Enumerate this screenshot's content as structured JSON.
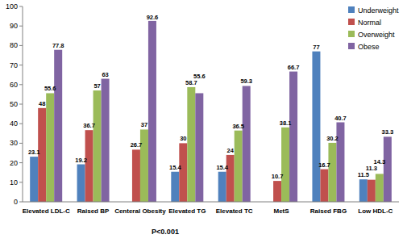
{
  "chart_data": {
    "type": "bar",
    "categories": [
      "Elevated LDL-C",
      "Raised BP",
      "Centeral Obesity",
      "Elevated TG",
      "Elevated TC",
      "MetS",
      "Raised FBG",
      "Low HDL-C"
    ],
    "series": [
      {
        "name": "Underweight",
        "color": "#4f81bd",
        "values": [
          23.1,
          19.2,
          null,
          15.4,
          15.4,
          null,
          77,
          11.5
        ]
      },
      {
        "name": "Normal",
        "color": "#c0504d",
        "values": [
          48,
          36.7,
          26.7,
          30,
          24,
          10.7,
          16.7,
          11.3
        ]
      },
      {
        "name": "Overweight",
        "color": "#9bbb59",
        "values": [
          55.6,
          57,
          37,
          58.7,
          36.5,
          38.1,
          30.2,
          14.3
        ]
      },
      {
        "name": "Obese",
        "color": "#8064a2",
        "values": [
          77.8,
          63,
          92.6,
          55.6,
          59.3,
          66.7,
          40.7,
          33.3
        ]
      }
    ],
    "annotations": [
      "P<0.001"
    ],
    "ylim": [
      0,
      100
    ],
    "yticks": [
      0,
      10,
      20,
      30,
      40,
      50,
      60,
      70,
      80,
      90,
      100
    ],
    "grid": false,
    "legend": "top-right",
    "data_labels": true
  }
}
